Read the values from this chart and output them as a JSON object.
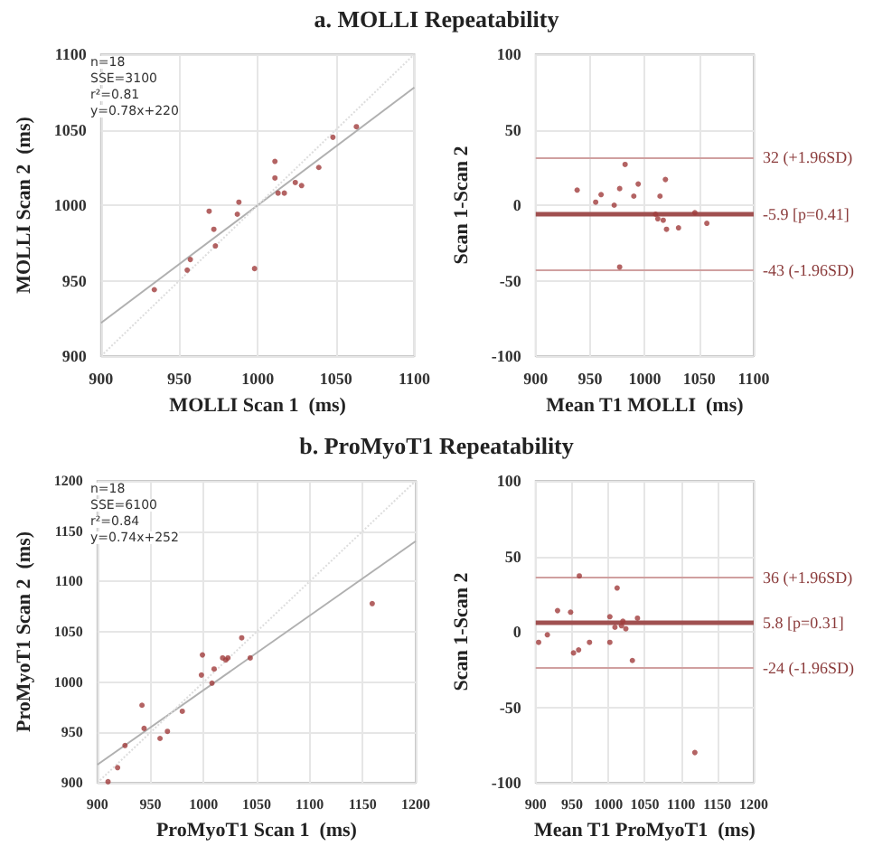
{
  "chart_data": [
    {
      "type": "scatter",
      "title": "a. MOLLI Repeatability",
      "xlabel": "MOLLI Scan 1  (ms)",
      "ylabel": "MOLLI Scan 2  (ms)",
      "xlim": [
        900,
        1100
      ],
      "ylim": [
        900,
        1100
      ],
      "xticks": [
        900,
        950,
        1000,
        1050,
        1100
      ],
      "yticks": [
        900,
        950,
        1000,
        1050,
        1100
      ],
      "grid": true,
      "marker": "circle",
      "annotations": [
        "n=18",
        "SSE=3100",
        "r²=0.81",
        "y=0.78x+220"
      ],
      "series": [
        {
          "color": "#a03c3c",
          "x": [
            934,
            955,
            957,
            969,
            972,
            973,
            987,
            988,
            998,
            1011,
            1011,
            1013,
            1017,
            1024,
            1028,
            1039,
            1048,
            1063
          ],
          "values": [
            944,
            957,
            964,
            996,
            984,
            973,
            994,
            1002,
            958,
            1029,
            1018,
            1008,
            1008,
            1015,
            1013,
            1025,
            1045,
            1052
          ]
        },
        {
          "type": "line",
          "color": "#b0b0b0",
          "line_style": "solid",
          "marker": "none",
          "x": [
            900,
            1100
          ],
          "values": [
            922,
            1078
          ]
        },
        {
          "type": "line",
          "color": "#dddddd",
          "line_style": "dotted",
          "marker": "none",
          "x": [
            900,
            1100
          ],
          "values": [
            900,
            1100
          ]
        }
      ]
    },
    {
      "type": "scatter",
      "xlabel": "Mean T1 MOLLI  (ms)",
      "ylabel": "Scan 1-Scan 2",
      "xlim": [
        900,
        1100
      ],
      "ylim": [
        -100,
        100
      ],
      "xticks": [
        900,
        950,
        1000,
        1050,
        1100
      ],
      "yticks": [
        -100,
        -50,
        0,
        50,
        100
      ],
      "grid": true,
      "marker": "circle",
      "series": [
        {
          "color": "#a03c3c",
          "x": [
            938,
            955,
            960,
            972,
            977,
            982,
            990,
            994,
            1014,
            1019,
            1010,
            1012,
            1017,
            1020,
            1031,
            1046,
            1057,
            977
          ],
          "values": [
            10,
            2,
            7,
            0,
            11,
            27,
            6,
            14,
            6,
            17,
            -6,
            -9,
            -10,
            -16,
            -15,
            -5,
            -12,
            -41
          ]
        }
      ],
      "ref_lines": [
        {
          "axis": "y",
          "value": 32,
          "label": "32 (+1.96SD)",
          "color": "#d0a0a0",
          "line_style": "solid"
        },
        {
          "axis": "y",
          "value": -5.9,
          "label": "-5.9 [p=0.41]",
          "color": "#a05050",
          "line_style": "solid"
        },
        {
          "axis": "y",
          "value": -43,
          "label": "-43 (-1.96SD)",
          "color": "#d0a0a0",
          "line_style": "solid"
        }
      ]
    },
    {
      "type": "scatter",
      "title": "b. ProMyoT1 Repeatability",
      "xlabel": "ProMyoT1 Scan 1  (ms)",
      "ylabel": "ProMyoT1 Scan 2  (ms)",
      "xlim": [
        900,
        1200
      ],
      "ylim": [
        900,
        1200
      ],
      "xticks": [
        900,
        950,
        1000,
        1050,
        1100,
        1150,
        1200
      ],
      "yticks": [
        900,
        950,
        1000,
        1050,
        1100,
        1150,
        1200
      ],
      "grid": true,
      "marker": "circle",
      "annotations": [
        "n=18",
        "SSE=6100",
        "r²=0.84",
        "y=0.74x+252"
      ],
      "series": [
        {
          "color": "#a03c3c",
          "x": [
            910,
            919,
            926,
            942,
            944,
            959,
            966,
            980,
            998,
            999,
            1008,
            1010,
            1018,
            1021,
            1023,
            1036,
            1044,
            1159
          ],
          "values": [
            901,
            915,
            937,
            977,
            954,
            944,
            951,
            971,
            1007,
            1027,
            999,
            1013,
            1024,
            1022,
            1024,
            1044,
            1024,
            1078
          ]
        },
        {
          "type": "line",
          "color": "#b0b0b0",
          "line_style": "solid",
          "marker": "none",
          "x": [
            900,
            1200
          ],
          "values": [
            918,
            1140
          ]
        },
        {
          "type": "line",
          "color": "#dddddd",
          "line_style": "dotted",
          "marker": "none",
          "x": [
            900,
            1200
          ],
          "values": [
            900,
            1200
          ]
        }
      ]
    },
    {
      "type": "scatter",
      "xlabel": "Mean T1 ProMyoT1  (ms)",
      "ylabel": "Scan 1-Scan 2",
      "xlim": [
        900,
        1200
      ],
      "ylim": [
        -100,
        100
      ],
      "xticks": [
        900,
        950,
        1000,
        1050,
        1100,
        1150,
        1200
      ],
      "yticks": [
        -100,
        -50,
        0,
        50,
        100
      ],
      "grid": true,
      "marker": "circle",
      "series": [
        {
          "color": "#a03c3c",
          "x": [
            904,
            916,
            930,
            948,
            952,
            959,
            960,
            974,
            1002,
            1002,
            1009,
            1012,
            1020,
            1018,
            1024,
            1033,
            1040,
            1119
          ],
          "values": [
            -7,
            -2,
            14,
            13,
            -14,
            -12,
            37,
            -7,
            10,
            -7,
            3,
            29,
            7,
            4,
            2,
            -19,
            9,
            -80
          ]
        }
      ],
      "ref_lines": [
        {
          "axis": "y",
          "value": 36,
          "label": "36 (+1.96SD)",
          "color": "#d0a0a0",
          "line_style": "solid"
        },
        {
          "axis": "y",
          "value": 5.8,
          "label": "5.8 [p=0.31]",
          "color": "#a05050",
          "line_style": "solid"
        },
        {
          "axis": "y",
          "value": -24,
          "label": "-24 (-1.96SD)",
          "color": "#d0a0a0",
          "line_style": "solid"
        }
      ]
    }
  ]
}
